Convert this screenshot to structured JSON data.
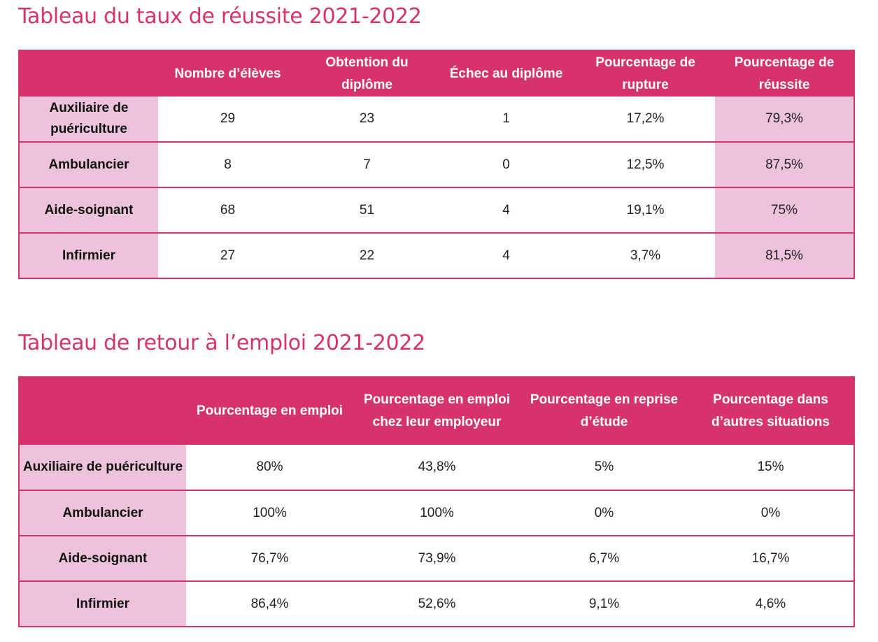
{
  "table1": {
    "title": "Tableau du taux de réussite 2021-2022",
    "headers": [
      "",
      "Nombre d’élèves",
      "Obtention du diplôme",
      "Échec au diplôme",
      "Pourcentage de rupture",
      "Pourcentage de réussite"
    ],
    "rows": [
      [
        "Auxiliaire de puériculture",
        "29",
        "23",
        "1",
        "17,2%",
        "79,3%"
      ],
      [
        "Ambulancier",
        "8",
        "7",
        "0",
        "12,5%",
        "87,5%"
      ],
      [
        "Aide-soignant",
        "68",
        "51",
        "4",
        "19,1%",
        "75%"
      ],
      [
        "Infirmier",
        "27",
        "22",
        "4",
        "3,7%",
        "81,5%"
      ]
    ]
  },
  "table2": {
    "title": "Tableau de retour à l’emploi 2021-2022",
    "headers": [
      "",
      "Pourcentage en emploi",
      "Pourcentage en emploi chez leur employeur",
      "Pourcentage en reprise d’étude",
      "Pourcentage dans d’autres situations"
    ],
    "rows": [
      [
        "Auxiliaire de puériculture",
        "80%",
        "43,8%",
        "5%",
        "15%"
      ],
      [
        "Ambulancier",
        "100%",
        "100%",
        "0%",
        "0%"
      ],
      [
        "Aide-soignant",
        "76,7%",
        "73,9%",
        "6,7%",
        "16,7%"
      ],
      [
        "Infirmier",
        "86,4%",
        "52,6%",
        "9,1%",
        "4,6%"
      ]
    ]
  },
  "colors": {
    "accent": "#d6336c",
    "row_header_bg": "#ecc3da"
  }
}
